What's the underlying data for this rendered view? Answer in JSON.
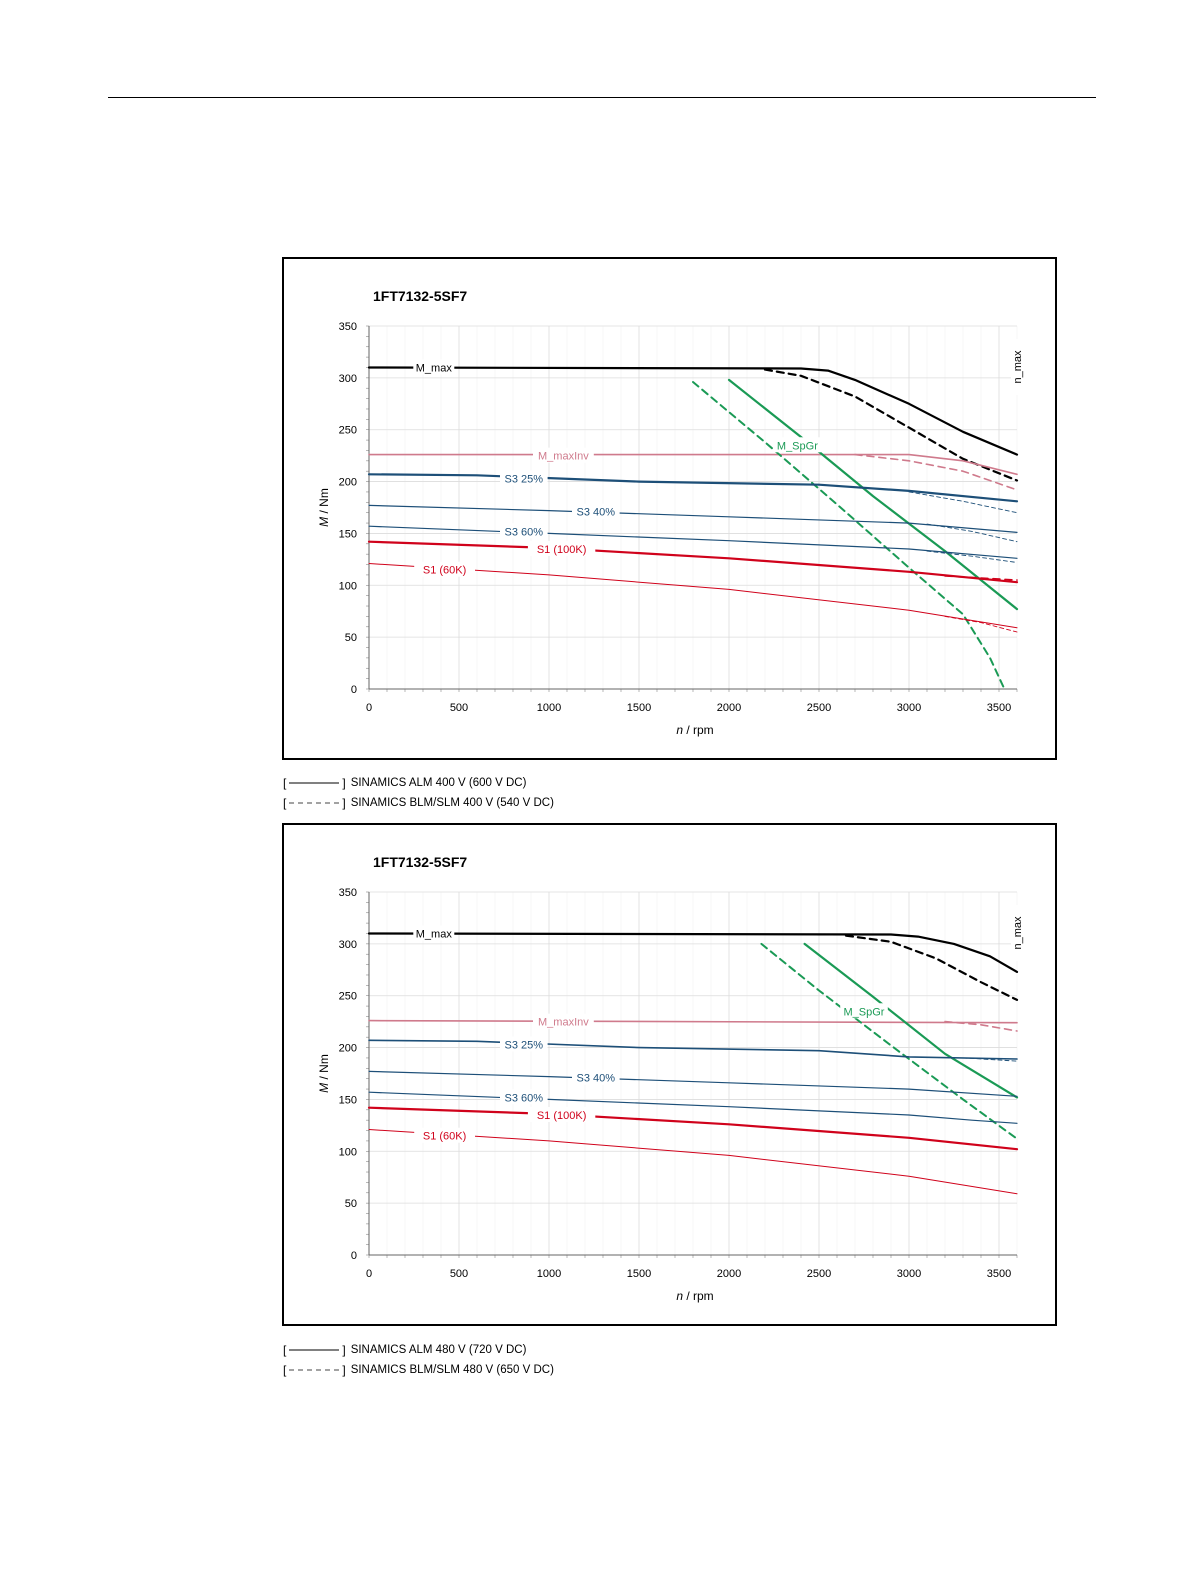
{
  "chart_data": [
    {
      "type": "line",
      "title": "1FT7132-5SF7",
      "xlabel_italic": "n",
      "xlabel_unit": " / rpm",
      "ylabel_italic": "M",
      "ylabel_unit": " / Nm",
      "xlim": [
        0,
        3600
      ],
      "ylim": [
        0,
        350
      ],
      "xticks": [
        0,
        500,
        1000,
        1500,
        2000,
        2500,
        3000,
        3500
      ],
      "yticks": [
        0,
        50,
        100,
        150,
        200,
        250,
        300,
        350
      ],
      "grid": true,
      "nmax_label": "n_max",
      "labels": [
        {
          "text": "M_max",
          "x": 360,
          "y": 310,
          "color": "#000000"
        },
        {
          "text": "M_maxInv",
          "x": 1080,
          "y": 225,
          "color": "#cf7a8c"
        },
        {
          "text": "M_SpGr",
          "x": 2380,
          "y": 235,
          "color": "#1a9a55"
        },
        {
          "text": "S3 25%",
          "x": 860,
          "y": 203,
          "color": "#1d4f78"
        },
        {
          "text": "S3 40%",
          "x": 1260,
          "y": 171,
          "color": "#1d4f78"
        },
        {
          "text": "S3 60%",
          "x": 860,
          "y": 152,
          "color": "#1d4f78"
        },
        {
          "text": "S1 (100K)",
          "x": 1070,
          "y": 135,
          "color": "#d0021b"
        },
        {
          "text": "S1 (60K)",
          "x": 420,
          "y": 115,
          "color": "#d0021b"
        }
      ],
      "series": [
        {
          "key": "M_max ALM",
          "color": "#000000",
          "width": 2.2,
          "dash": false,
          "x": [
            0,
            2400,
            2550,
            2700,
            3000,
            3300,
            3600
          ],
          "y": [
            310,
            309,
            307,
            298,
            275,
            248,
            226
          ]
        },
        {
          "key": "M_max BLM/SLM",
          "color": "#000000",
          "width": 2.2,
          "dash": true,
          "x": [
            2200,
            2400,
            2700,
            3000,
            3300,
            3600
          ],
          "y": [
            308,
            302,
            282,
            252,
            222,
            201
          ]
        },
        {
          "key": "M_maxInv ALM",
          "color": "#cf7a8c",
          "width": 1.6,
          "dash": false,
          "x": [
            0,
            3000,
            3300,
            3600
          ],
          "y": [
            226,
            226,
            220,
            207
          ]
        },
        {
          "key": "M_maxInv BLM/SLM",
          "color": "#cf7a8c",
          "width": 1.6,
          "dash": true,
          "x": [
            2700,
            3000,
            3300,
            3600
          ],
          "y": [
            226,
            220,
            210,
            192
          ]
        },
        {
          "key": "M_SpGr ALM",
          "color": "#1a9a55",
          "width": 2.2,
          "dash": false,
          "x": [
            2000,
            2400,
            2800,
            3200,
            3600
          ],
          "y": [
            298,
            243,
            186,
            133,
            77
          ]
        },
        {
          "key": "M_SpGr BLM/SLM",
          "color": "#1a9a55",
          "width": 2.0,
          "dash": true,
          "x": [
            1800,
            2200,
            2600,
            3000,
            3300,
            3450,
            3530
          ],
          "y": [
            296,
            238,
            178,
            117,
            72,
            30,
            0
          ]
        },
        {
          "key": "S3 25% ALM",
          "color": "#1d4f78",
          "width": 2.2,
          "dash": false,
          "x": [
            0,
            600,
            1500,
            2500,
            3000,
            3600
          ],
          "y": [
            207,
            206,
            200,
            197,
            191,
            181
          ]
        },
        {
          "key": "S3 25% BLM/SLM",
          "color": "#1d4f78",
          "width": 0.9,
          "dash": true,
          "x": [
            3000,
            3300,
            3600
          ],
          "y": [
            190,
            181,
            170
          ]
        },
        {
          "key": "S3 40% ALM",
          "color": "#1d4f78",
          "width": 1.2,
          "dash": false,
          "x": [
            0,
            1000,
            2000,
            3000,
            3600
          ],
          "y": [
            177,
            172,
            166,
            160,
            151
          ]
        },
        {
          "key": "S3 40% BLM/SLM",
          "color": "#1d4f78",
          "width": 0.9,
          "dash": true,
          "x": [
            3100,
            3350,
            3600
          ],
          "y": [
            159,
            152,
            142
          ]
        },
        {
          "key": "S3 60% ALM",
          "color": "#1d4f78",
          "width": 1.2,
          "dash": false,
          "x": [
            0,
            1000,
            2000,
            3000,
            3600
          ],
          "y": [
            157,
            150,
            143,
            135,
            126
          ]
        },
        {
          "key": "S3 60% BLM/SLM",
          "color": "#1d4f78",
          "width": 0.9,
          "dash": true,
          "x": [
            3100,
            3350,
            3600
          ],
          "y": [
            133,
            128,
            122
          ]
        },
        {
          "key": "S1 (100K) ALM",
          "color": "#d0021b",
          "width": 2.2,
          "dash": false,
          "x": [
            0,
            1000,
            2000,
            3000,
            3600
          ],
          "y": [
            142,
            136,
            126,
            113,
            103
          ]
        },
        {
          "key": "S1 (100K) BLM/SLM",
          "color": "#d0021b",
          "width": 1.6,
          "dash": true,
          "x": [
            3200,
            3400,
            3600
          ],
          "y": [
            109,
            107,
            105
          ]
        },
        {
          "key": "S1 (60K) ALM",
          "color": "#d0021b",
          "width": 1.0,
          "dash": false,
          "x": [
            0,
            1000,
            2000,
            3000,
            3600
          ],
          "y": [
            121,
            110,
            96,
            76,
            59
          ]
        },
        {
          "key": "S1 (60K) BLM/SLM",
          "color": "#d0021b",
          "width": 0.9,
          "dash": true,
          "x": [
            3200,
            3400,
            3600
          ],
          "y": [
            70,
            64,
            55
          ]
        }
      ]
    },
    {
      "type": "line",
      "title": "1FT7132-5SF7",
      "xlabel_italic": "n",
      "xlabel_unit": " / rpm",
      "ylabel_italic": "M",
      "ylabel_unit": " / Nm",
      "xlim": [
        0,
        3600
      ],
      "ylim": [
        0,
        350
      ],
      "xticks": [
        0,
        500,
        1000,
        1500,
        2000,
        2500,
        3000,
        3500
      ],
      "yticks": [
        0,
        50,
        100,
        150,
        200,
        250,
        300,
        350
      ],
      "grid": true,
      "nmax_label": "n_max",
      "labels": [
        {
          "text": "M_max",
          "x": 360,
          "y": 310,
          "color": "#000000"
        },
        {
          "text": "M_maxInv",
          "x": 1080,
          "y": 225,
          "color": "#cf7a8c"
        },
        {
          "text": "M_SpGr",
          "x": 2750,
          "y": 235,
          "color": "#1a9a55"
        },
        {
          "text": "S3 25%",
          "x": 860,
          "y": 203,
          "color": "#1d4f78"
        },
        {
          "text": "S3 40%",
          "x": 1260,
          "y": 171,
          "color": "#1d4f78"
        },
        {
          "text": "S3 60%",
          "x": 860,
          "y": 152,
          "color": "#1d4f78"
        },
        {
          "text": "S1 (100K)",
          "x": 1070,
          "y": 135,
          "color": "#d0021b"
        },
        {
          "text": "S1 (60K)",
          "x": 420,
          "y": 115,
          "color": "#d0021b"
        }
      ],
      "series": [
        {
          "key": "M_max ALM",
          "color": "#000000",
          "width": 2.2,
          "dash": false,
          "x": [
            0,
            2900,
            3050,
            3250,
            3450,
            3600
          ],
          "y": [
            310,
            309,
            307,
            300,
            288,
            273
          ]
        },
        {
          "key": "M_max BLM/SLM",
          "color": "#000000",
          "width": 2.2,
          "dash": true,
          "x": [
            2650,
            2900,
            3150,
            3400,
            3600
          ],
          "y": [
            308,
            302,
            286,
            263,
            246
          ]
        },
        {
          "key": "M_maxInv ALM",
          "color": "#cf7a8c",
          "width": 1.6,
          "dash": false,
          "x": [
            0,
            3600
          ],
          "y": [
            226,
            224
          ]
        },
        {
          "key": "M_maxInv BLM/SLM",
          "color": "#cf7a8c",
          "width": 1.6,
          "dash": true,
          "x": [
            3200,
            3400,
            3600
          ],
          "y": [
            225,
            222,
            216
          ]
        },
        {
          "key": "M_SpGr ALM",
          "color": "#1a9a55",
          "width": 2.2,
          "dash": false,
          "x": [
            2420,
            2800,
            3200,
            3600
          ],
          "y": [
            300,
            249,
            194,
            152
          ]
        },
        {
          "key": "M_SpGr BLM/SLM",
          "color": "#1a9a55",
          "width": 2.0,
          "dash": true,
          "x": [
            2180,
            2500,
            2900,
            3300,
            3600
          ],
          "y": [
            300,
            255,
            202,
            150,
            112
          ]
        },
        {
          "key": "S3 25% ALM",
          "color": "#1d4f78",
          "width": 1.6,
          "dash": false,
          "x": [
            0,
            600,
            1500,
            2500,
            3000,
            3600
          ],
          "y": [
            207,
            206,
            200,
            197,
            191,
            189
          ]
        },
        {
          "key": "S3 25% BLM/SLM",
          "color": "#1d4f78",
          "width": 0.9,
          "dash": true,
          "x": [
            3300,
            3600
          ],
          "y": [
            190,
            187
          ]
        },
        {
          "key": "S3 40% ALM",
          "color": "#1d4f78",
          "width": 1.2,
          "dash": false,
          "x": [
            0,
            1000,
            2000,
            3000,
            3600
          ],
          "y": [
            177,
            172,
            166,
            160,
            153
          ]
        },
        {
          "key": "S3 60% ALM",
          "color": "#1d4f78",
          "width": 1.2,
          "dash": false,
          "x": [
            0,
            1000,
            2000,
            3000,
            3350,
            3600
          ],
          "y": [
            157,
            150,
            143,
            135,
            130,
            127
          ]
        },
        {
          "key": "S1 (100K) ALM",
          "color": "#d0021b",
          "width": 2.2,
          "dash": false,
          "x": [
            0,
            1000,
            2000,
            3000,
            3600
          ],
          "y": [
            142,
            136,
            126,
            113,
            102
          ]
        },
        {
          "key": "S1 (60K) ALM",
          "color": "#d0021b",
          "width": 1.0,
          "dash": false,
          "x": [
            0,
            1000,
            2000,
            3000,
            3600
          ],
          "y": [
            121,
            110,
            96,
            76,
            59
          ]
        }
      ]
    }
  ],
  "legend1": {
    "bracket_open": "[",
    "bracket_close": "]",
    "solid_text": "SINAMICS ALM 400 V (600 V DC)",
    "dashed_text": "SINAMICS BLM/SLM 400 V (540 V DC)"
  },
  "legend2": {
    "bracket_open": "[",
    "bracket_close": "]",
    "solid_text": "SINAMICS ALM 480 V (720 V DC)",
    "dashed_text": "SINAMICS BLM/SLM 480 V (650 V DC)"
  }
}
